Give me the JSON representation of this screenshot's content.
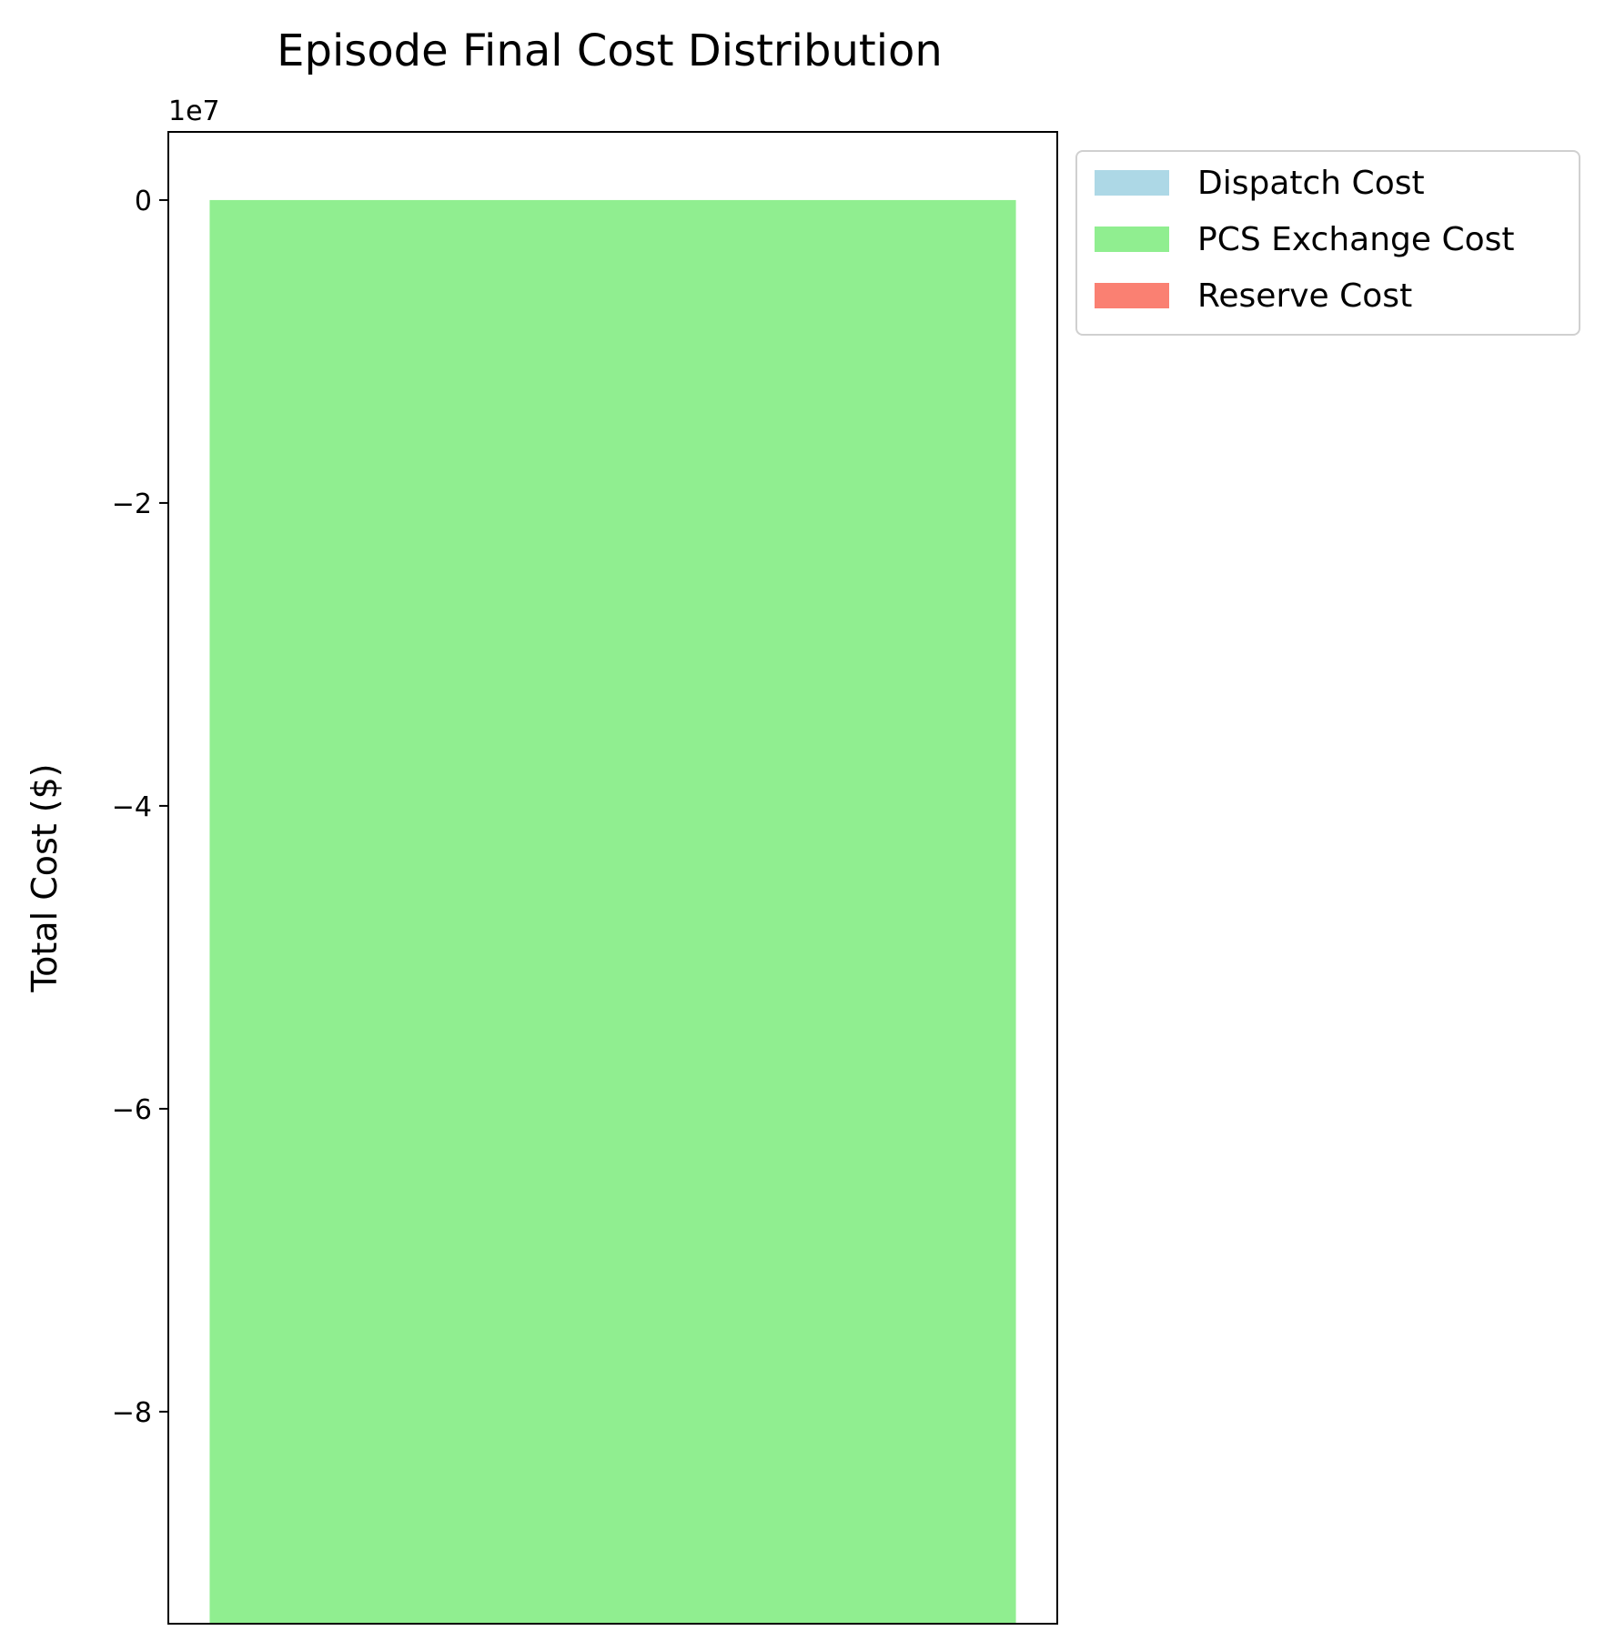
{
  "chart_data": {
    "type": "bar",
    "title": "Episode Final Cost Distribution",
    "xlabel": "",
    "ylabel": "Total Cost ($)",
    "offset_label": "1e7",
    "ylim": [
      -9.4,
      0.45
    ],
    "yticks": [
      0,
      -2,
      -4,
      -6,
      -8
    ],
    "ytick_labels": [
      "0",
      "−2",
      "−4",
      "−6",
      "−8"
    ],
    "grid": false,
    "legend_position": "upper-left-outside",
    "stacked": true,
    "categories": [
      ""
    ],
    "series": [
      {
        "name": "Dispatch Cost",
        "color": "#add8e6",
        "values": [
          0.0
        ]
      },
      {
        "name": "PCS Exchange Cost",
        "color": "#90ee90",
        "values": [
          -9.4
        ]
      },
      {
        "name": "Reserve Cost",
        "color": "#fa8072",
        "values": [
          0.0
        ]
      }
    ]
  }
}
